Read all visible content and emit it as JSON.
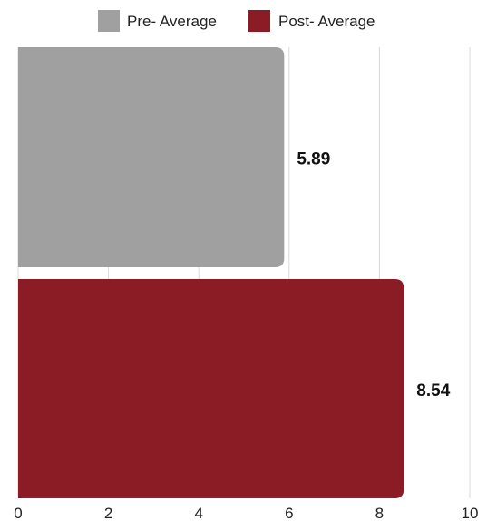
{
  "chart_data": {
    "type": "bar",
    "orientation": "horizontal",
    "series": [
      {
        "name": "Pre- Average",
        "values": [
          5.89
        ],
        "color": "#a0a0a0"
      },
      {
        "name": "Post- Average",
        "values": [
          8.54
        ],
        "color": "#8b1c26"
      }
    ],
    "value_labels": [
      "5.89",
      "8.54"
    ],
    "x_ticks": [
      "0",
      "2",
      "4",
      "6",
      "8",
      "10"
    ],
    "xlim": [
      0,
      10
    ],
    "grid": true,
    "legend_position": "top-center",
    "title": "",
    "xlabel": "",
    "ylabel": ""
  }
}
